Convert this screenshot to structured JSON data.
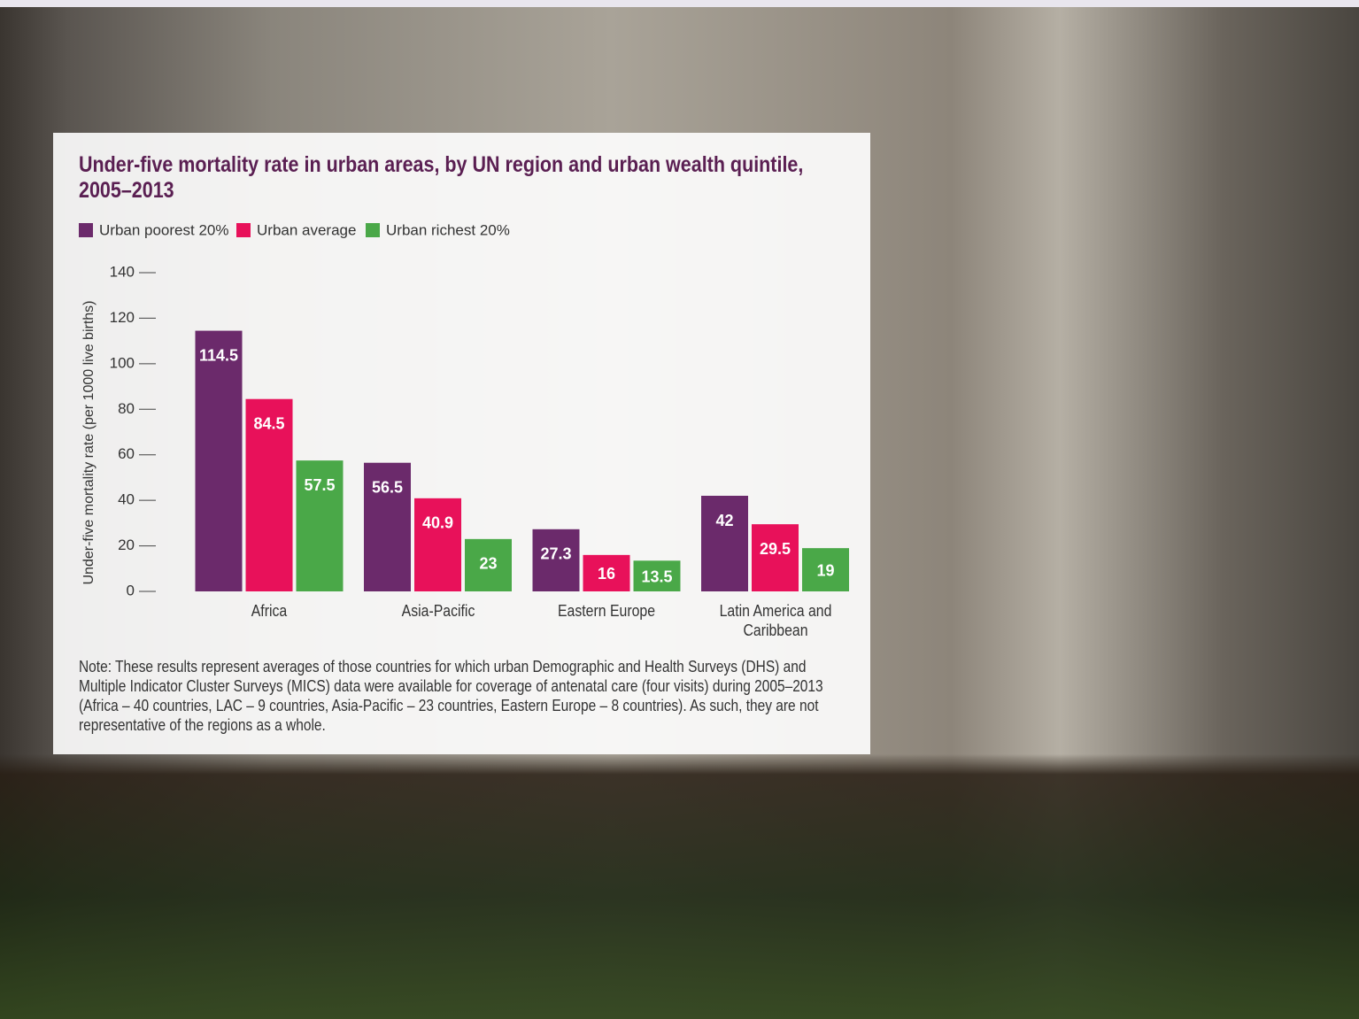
{
  "chart_data": {
    "type": "bar",
    "title": "Under-five mortality rate in urban areas, by UN region and urban wealth quintile, 2005–2013",
    "y_label": "Under-five mortality rate (per 1000 live births)",
    "categories": [
      "Africa",
      "Asia-Pacific",
      "Eastern Europe",
      "Latin America and Caribbean"
    ],
    "series": [
      {
        "name": "Urban poorest 20%",
        "color": "#6b2a6b",
        "values": [
          114.5,
          56.5,
          27.3,
          42
        ]
      },
      {
        "name": "Urban average",
        "color": "#e8115a",
        "values": [
          84.5,
          40.9,
          16,
          29.5
        ]
      },
      {
        "name": "Urban richest 20%",
        "color": "#4aa848",
        "values": [
          57.5,
          23,
          13.5,
          19
        ]
      }
    ],
    "ylim": [
      0,
      140
    ],
    "yticks": [
      0,
      20,
      40,
      60,
      80,
      100,
      120,
      140
    ],
    "note": "Note: These results represent averages of those countries for which urban Demographic and Health Surveys (DHS) and Multiple Indicator Cluster Surveys (MICS) data were available for coverage of antenatal care (four visits) during 2005–2013 (Africa – 40 countries, LAC – 9 countries, Asia-Pacific – 23 countries, Eastern Europe – 8 countries). As such, they are not representative of the regions as a whole."
  }
}
